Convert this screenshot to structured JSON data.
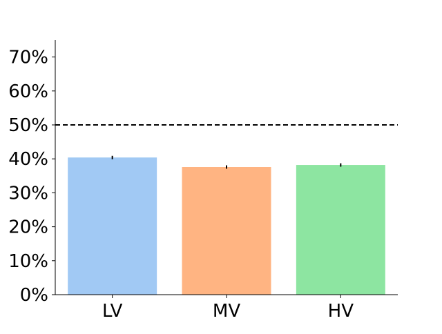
{
  "chart_data": {
    "type": "bar",
    "categories": [
      "LV",
      "MV",
      "HV"
    ],
    "values": [
      0.404,
      0.376,
      0.382
    ],
    "errors": [
      0.005,
      0.005,
      0.005
    ],
    "colors": [
      "#a1c9f4",
      "#ffb482",
      "#8de5a1"
    ],
    "ylim": [
      0,
      0.75
    ],
    "yticks": [
      0,
      0.1,
      0.2,
      0.3,
      0.4,
      0.5,
      0.6,
      0.7
    ],
    "ytick_format": "percent",
    "reference_line": {
      "y": 0.5,
      "style": "dashed",
      "color": "#000000"
    },
    "grid": false,
    "legend": "none",
    "title": "",
    "xlabel": "",
    "ylabel": ""
  }
}
